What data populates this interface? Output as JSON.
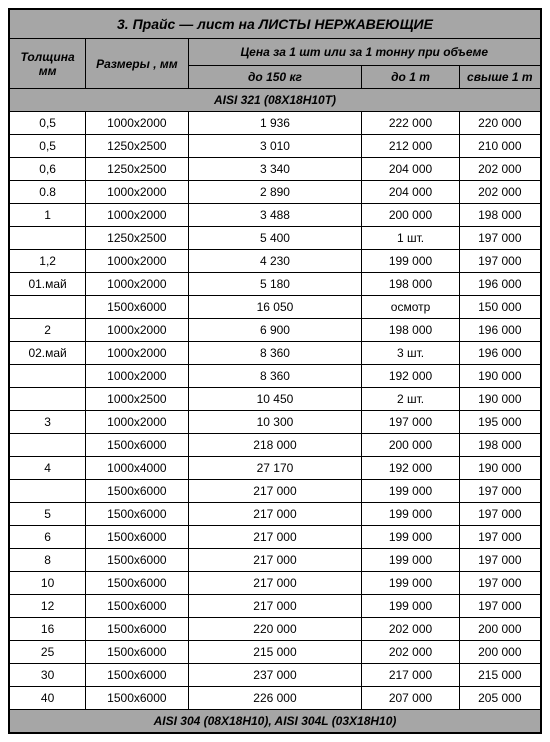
{
  "title": "3. Прайс — лист   на   ЛИСТЫ НЕРЖАВЕЮЩИЕ",
  "headers": {
    "thickness": "Толщина мм",
    "size": "Размеры , мм",
    "price_span": "Цена за 1 шт или за 1 тонну при объеме",
    "upto150": "до 150 кг",
    "upto1t": "до 1 т",
    "over1t": "свыше 1 т"
  },
  "sections": [
    {
      "label": "AISI  321 (08Х18Н10Т)",
      "rows": [
        {
          "t": "0,5",
          "s": "1000x2000",
          "p1": "1 936",
          "p2": "222 000",
          "p3": "220 000"
        },
        {
          "t": "0,5",
          "s": "1250x2500",
          "p1": "3 010",
          "p2": "212 000",
          "p3": "210 000"
        },
        {
          "t": "0,6",
          "s": "1250x2500",
          "p1": "3 340",
          "p2": "204 000",
          "p3": "202 000"
        },
        {
          "t": "0.8",
          "s": "1000x2000",
          "p1": "2 890",
          "p2": "204 000",
          "p3": "202 000"
        },
        {
          "t": "1",
          "s": "1000x2000",
          "p1": "3 488",
          "p2": "200 000",
          "p3": "198 000"
        },
        {
          "t": "",
          "s": "1250x2500",
          "p1": "5 400",
          "p2": "1 шт.",
          "p3": "197 000"
        },
        {
          "t": "1,2",
          "s": "1000x2000",
          "p1": "4 230",
          "p2": "199 000",
          "p3": "197 000"
        },
        {
          "t": "01.май",
          "s": "1000x2000",
          "p1": "5 180",
          "p2": "198 000",
          "p3": "196 000"
        },
        {
          "t": "",
          "s": "1500x6000",
          "p1": "16 050",
          "p2": "осмотр",
          "p3": "150 000"
        },
        {
          "t": "2",
          "s": "1000x2000",
          "p1": "6 900",
          "p2": "198 000",
          "p3": "196 000"
        },
        {
          "t": "02.май",
          "s": "1000x2000",
          "p1": "8 360",
          "p2": "3 шт.",
          "p3": "196 000"
        },
        {
          "t": "",
          "s": "1000x2000",
          "p1": "8 360",
          "p2": "192 000",
          "p3": "190 000"
        },
        {
          "t": "",
          "s": "1000x2500",
          "p1": "10 450",
          "p2": "2 шт.",
          "p3": "190 000"
        },
        {
          "t": "3",
          "s": "1000x2000",
          "p1": "10 300",
          "p2": "197 000",
          "p3": "195 000"
        },
        {
          "t": "",
          "s": "1500x6000",
          "p1": "218 000",
          "p2": "200 000",
          "p3": "198 000"
        },
        {
          "t": "4",
          "s": "1000x4000",
          "p1": "27 170",
          "p2": "192 000",
          "p3": "190 000"
        },
        {
          "t": "",
          "s": "1500x6000",
          "p1": "217 000",
          "p2": "199 000",
          "p3": "197 000"
        },
        {
          "t": "5",
          "s": "1500x6000",
          "p1": "217 000",
          "p2": "199 000",
          "p3": "197 000"
        },
        {
          "t": "6",
          "s": "1500x6000",
          "p1": "217 000",
          "p2": "199 000",
          "p3": "197 000"
        },
        {
          "t": "8",
          "s": "1500x6000",
          "p1": "217 000",
          "p2": "199 000",
          "p3": "197 000"
        },
        {
          "t": "10",
          "s": "1500x6000",
          "p1": "217 000",
          "p2": "199 000",
          "p3": "197 000"
        },
        {
          "t": "12",
          "s": "1500x6000",
          "p1": "217 000",
          "p2": "199 000",
          "p3": "197 000"
        },
        {
          "t": "16",
          "s": "1500x6000",
          "p1": "220 000",
          "p2": "202 000",
          "p3": "200 000"
        },
        {
          "t": "25",
          "s": "1500x6000",
          "p1": "215 000",
          "p2": "202 000",
          "p3": "200 000"
        },
        {
          "t": "30",
          "s": "1500x6000",
          "p1": "237 000",
          "p2": "217 000",
          "p3": "215 000"
        },
        {
          "t": "40",
          "s": "1500x6000",
          "p1": "226 000",
          "p2": "207 000",
          "p3": "205 000"
        }
      ]
    },
    {
      "label": "AISI 304 (08Х18Н10), AISI 304L (03Х18Н10)",
      "rows": []
    }
  ],
  "style": {
    "header_bg": "#a6a6a6",
    "border_color": "#000000",
    "font_size_title": 14,
    "font_size_body": 12
  }
}
